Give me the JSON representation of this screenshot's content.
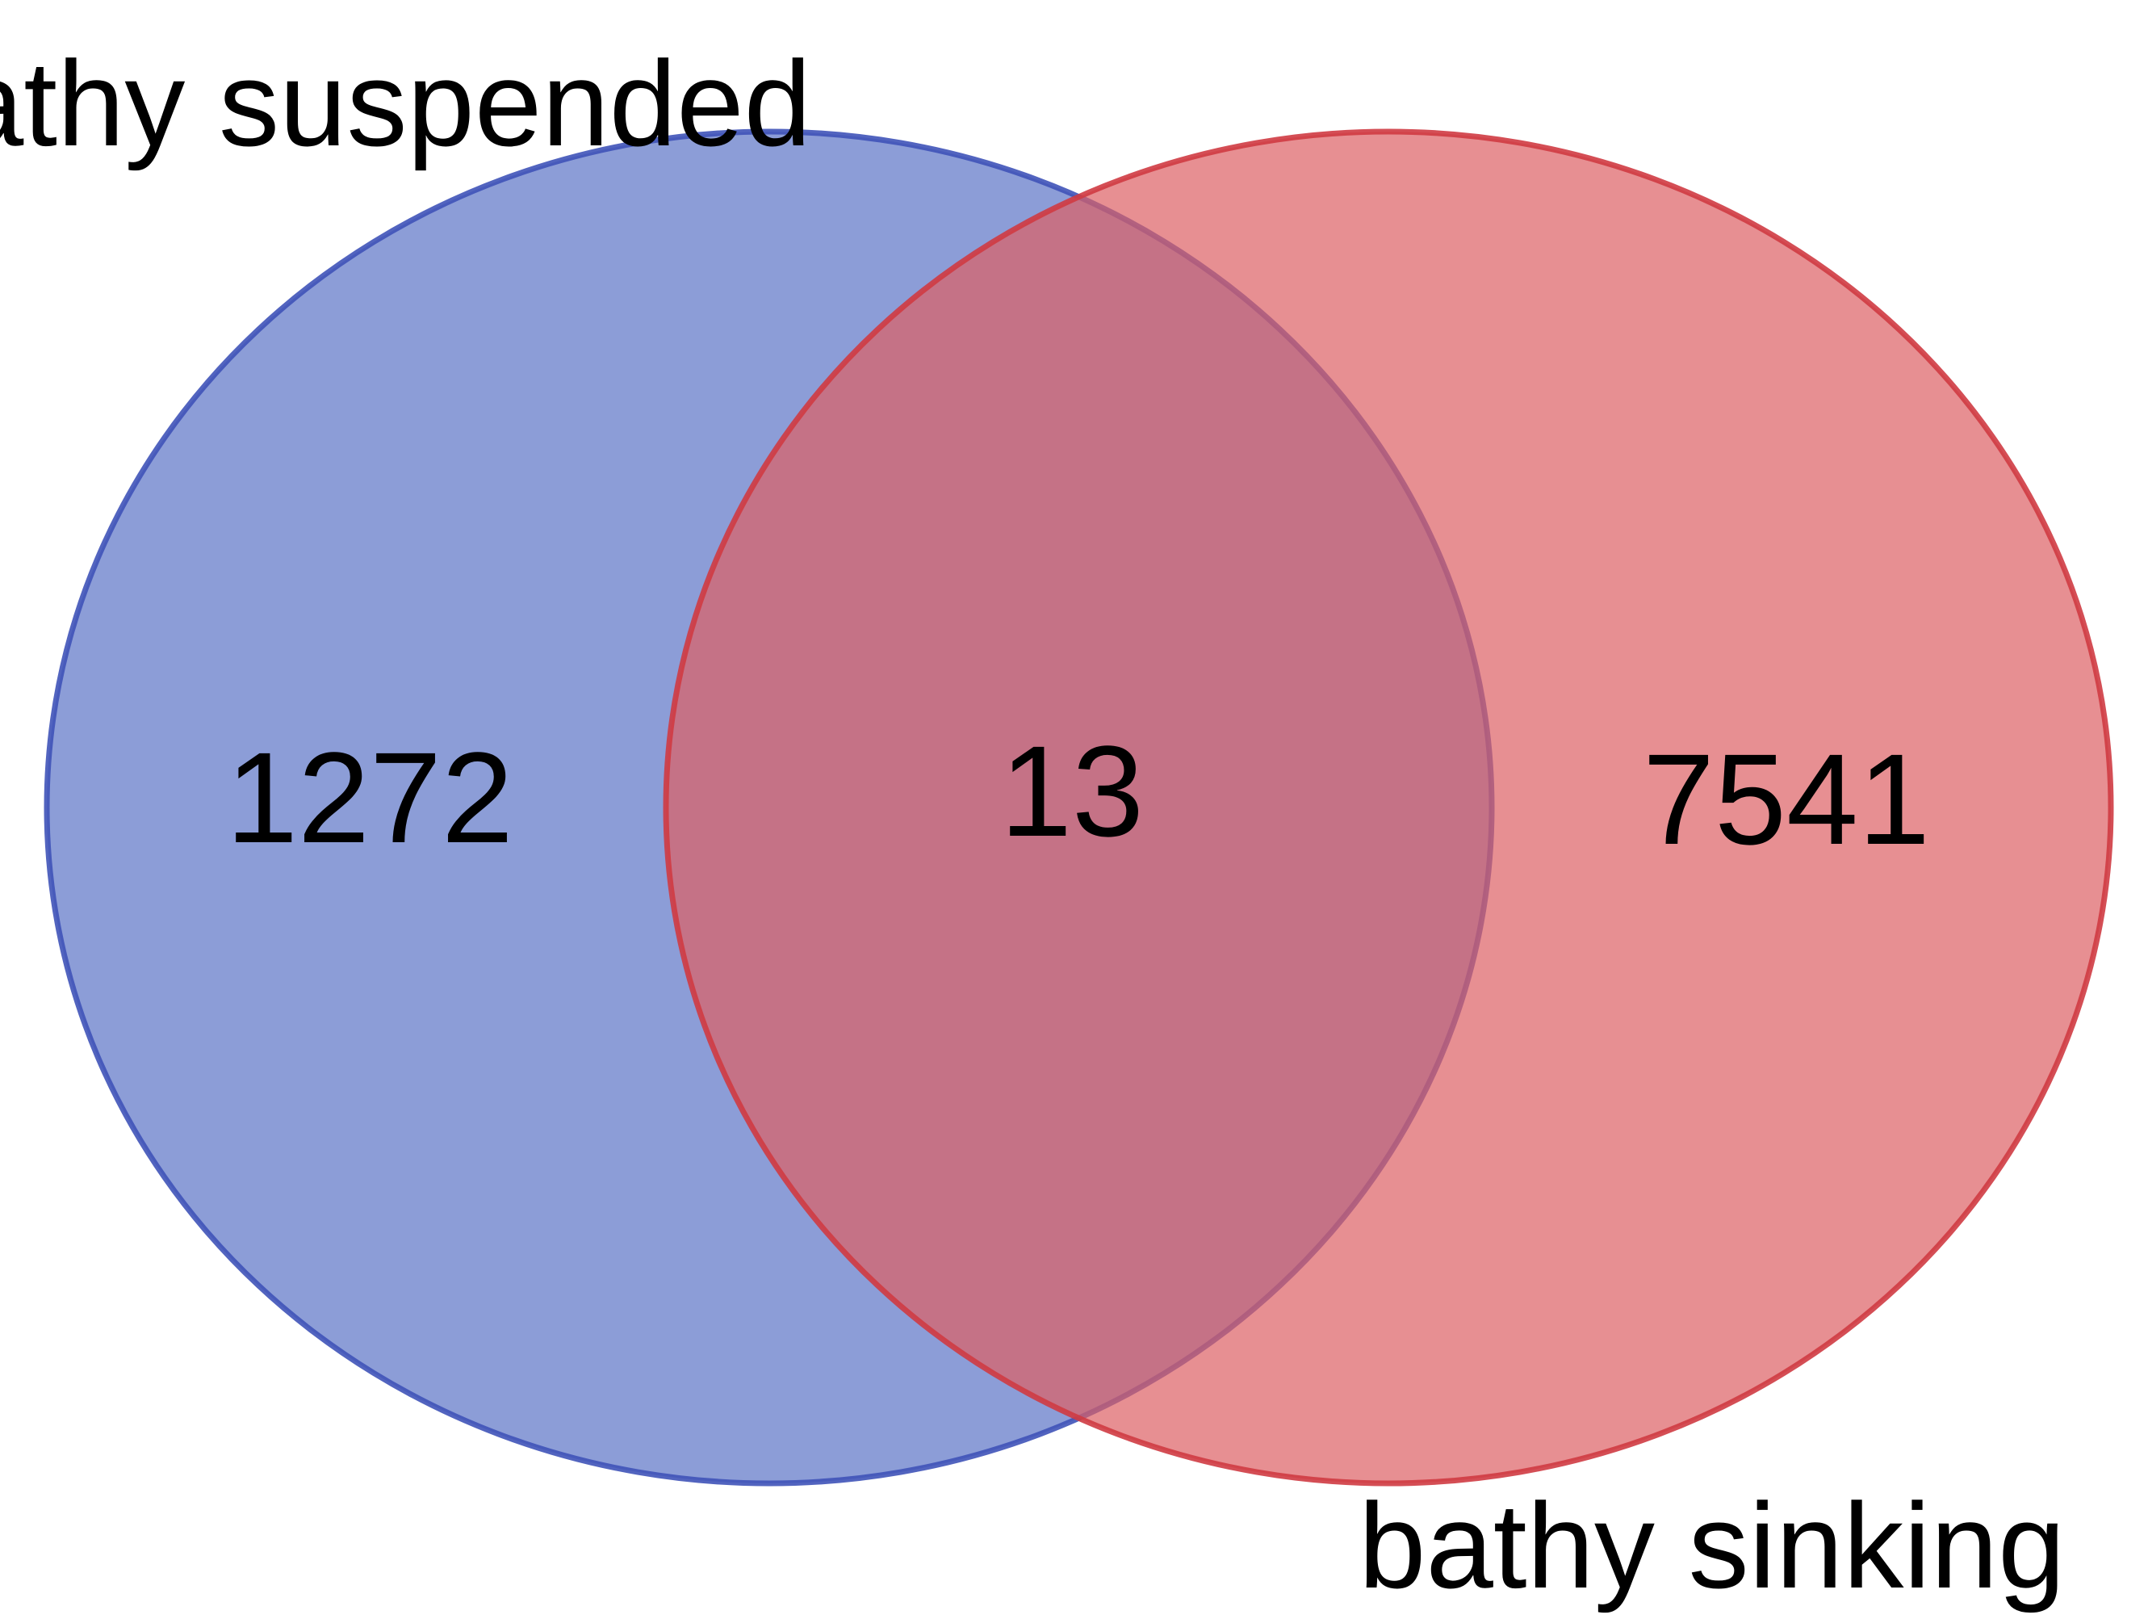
{
  "sets": [
    {
      "label": "bathy suspended",
      "only_count": "1272",
      "fill_color": "#5b74c6",
      "stroke_color": "#3f53b8"
    },
    {
      "label": "bathy sinking",
      "only_count": "7541",
      "fill_color": "#dd6064",
      "stroke_color": "#cf3b43"
    }
  ],
  "intersection": {
    "count": "13"
  }
}
